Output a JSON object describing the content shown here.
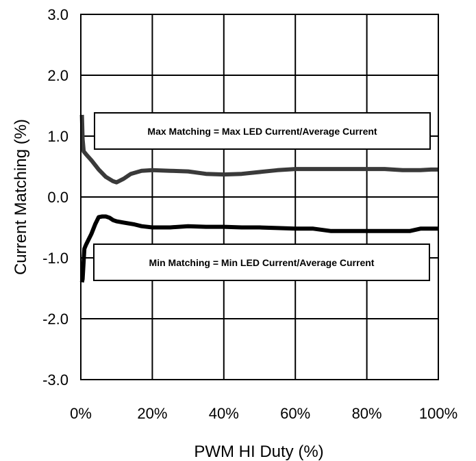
{
  "chart_data": {
    "type": "line",
    "xlabel": "PWM HI Duty (%)",
    "ylabel": "Current Matching (%)",
    "xlim": [
      0,
      100
    ],
    "ylim": [
      -3.0,
      3.0
    ],
    "x_ticks": [
      0,
      20,
      40,
      60,
      80,
      100
    ],
    "x_tick_labels": [
      "0%",
      "20%",
      "40%",
      "60%",
      "80%",
      "100%"
    ],
    "y_ticks": [
      3.0,
      2.0,
      1.0,
      0.0,
      -1.0,
      -2.0,
      -3.0
    ],
    "y_tick_labels": [
      "3.0",
      "2.0",
      "1.0",
      "0.0",
      "-1.0",
      "-2.0",
      "-3.0"
    ],
    "grid": true,
    "legend": "none",
    "annotations": [
      "Max Matching = Max LED Current/Average Current",
      "Min Matching = Min LED Current/Average Current"
    ],
    "series": [
      {
        "color": "#3a3a3a",
        "x": [
          0.3,
          0.5,
          0.8,
          1.5,
          3,
          5,
          7,
          9,
          10,
          12,
          14,
          17,
          20,
          25,
          30,
          35,
          40,
          45,
          50,
          55,
          60,
          65,
          70,
          75,
          80,
          85,
          90,
          95,
          98,
          100
        ],
        "y": [
          1.35,
          0.95,
          0.75,
          0.7,
          0.6,
          0.45,
          0.33,
          0.26,
          0.24,
          0.3,
          0.38,
          0.43,
          0.44,
          0.43,
          0.42,
          0.38,
          0.37,
          0.38,
          0.41,
          0.44,
          0.46,
          0.46,
          0.46,
          0.46,
          0.46,
          0.46,
          0.44,
          0.44,
          0.45,
          0.45
        ]
      },
      {
        "color": "#000000",
        "x": [
          0.3,
          0.5,
          1,
          1.5,
          3,
          4,
          5,
          6,
          7,
          8,
          9,
          10,
          12,
          15,
          17,
          20,
          25,
          30,
          35,
          40,
          45,
          50,
          55,
          60,
          65,
          70,
          75,
          80,
          85,
          90,
          92,
          95,
          98,
          100
        ],
        "y": [
          -1.4,
          -1.35,
          -0.85,
          -0.78,
          -0.6,
          -0.45,
          -0.33,
          -0.32,
          -0.32,
          -0.34,
          -0.38,
          -0.4,
          -0.42,
          -0.45,
          -0.48,
          -0.5,
          -0.5,
          -0.48,
          -0.49,
          -0.49,
          -0.5,
          -0.5,
          -0.51,
          -0.52,
          -0.52,
          -0.56,
          -0.56,
          -0.56,
          -0.56,
          -0.56,
          -0.56,
          -0.52,
          -0.52,
          -0.52
        ]
      }
    ]
  }
}
